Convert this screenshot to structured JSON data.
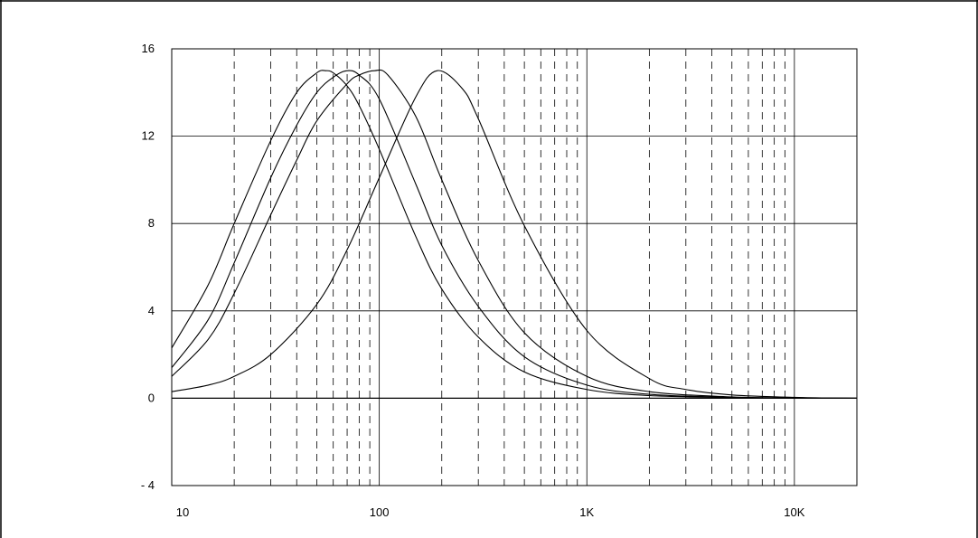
{
  "chart_data": {
    "type": "line",
    "title": "",
    "xlabel": "",
    "ylabel": "",
    "x_scale": "log",
    "xlim": [
      10,
      20000
    ],
    "ylim": [
      -4,
      16
    ],
    "grid": true,
    "legend": "none",
    "x_ticks": [
      {
        "value": 10,
        "label": "10"
      },
      {
        "value": 100,
        "label": "100"
      },
      {
        "value": 1000,
        "label": "1K"
      },
      {
        "value": 10000,
        "label": "10K"
      }
    ],
    "y_ticks": [
      {
        "value": 16,
        "label": "16"
      },
      {
        "value": 12,
        "label": "12"
      },
      {
        "value": 8,
        "label": "8"
      },
      {
        "value": 4,
        "label": "4"
      },
      {
        "value": 0,
        "label": "0"
      },
      {
        "value": -4,
        "label": "- 4"
      }
    ],
    "series": [
      {
        "center_hz": 55,
        "x": [
          10,
          15,
          20,
          30,
          40,
          50,
          55,
          60,
          70,
          80,
          100,
          150,
          200,
          300,
          500,
          1000,
          2000,
          5000,
          10000,
          20000
        ],
        "y": [
          2.3,
          5.2,
          8.0,
          11.8,
          14.0,
          14.9,
          15.0,
          14.9,
          14.3,
          13.4,
          11.4,
          7.4,
          5.0,
          2.8,
          1.2,
          0.4,
          0.12,
          0.03,
          0.01,
          0.0
        ]
      },
      {
        "center_hz": 70,
        "x": [
          10,
          15,
          20,
          30,
          40,
          50,
          60,
          70,
          80,
          100,
          150,
          200,
          300,
          500,
          1000,
          2000,
          5000,
          10000,
          20000
        ],
        "y": [
          1.4,
          3.6,
          6.2,
          10.1,
          12.5,
          14.0,
          14.7,
          15.0,
          14.8,
          13.7,
          9.8,
          7.0,
          4.2,
          1.9,
          0.6,
          0.18,
          0.04,
          0.01,
          0.0
        ]
      },
      {
        "center_hz": 95,
        "x": [
          10,
          15,
          20,
          30,
          40,
          50,
          70,
          80,
          95,
          110,
          150,
          200,
          300,
          500,
          1000,
          2000,
          5000,
          10000,
          20000
        ],
        "y": [
          1.0,
          2.7,
          4.8,
          8.4,
          10.9,
          12.7,
          14.4,
          14.8,
          15.0,
          14.8,
          12.9,
          10.0,
          6.3,
          3.0,
          1.0,
          0.3,
          0.06,
          0.02,
          0.0
        ]
      },
      {
        "center_hz": 190,
        "x": [
          10,
          15,
          20,
          30,
          50,
          70,
          100,
          150,
          190,
          250,
          300,
          500,
          1000,
          2000,
          3000,
          5000,
          10000,
          20000
        ],
        "y": [
          0.3,
          0.6,
          1.0,
          2.0,
          4.3,
          6.8,
          10.1,
          13.8,
          15.0,
          14.2,
          12.8,
          7.9,
          3.1,
          0.9,
          0.4,
          0.15,
          0.04,
          0.0
        ]
      }
    ]
  }
}
